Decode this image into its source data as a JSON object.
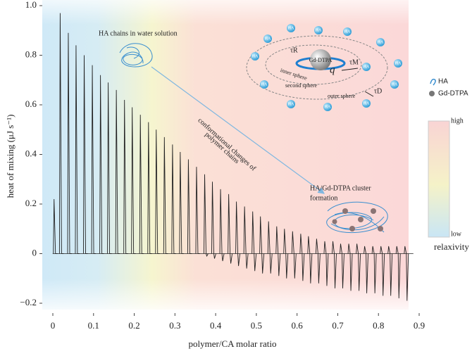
{
  "chart_data": {
    "type": "spikes",
    "x_label": "polymer/CA molar ratio",
    "y_label": "heat of mixing (μJ s⁻¹)",
    "xlim": [
      0,
      0.9
    ],
    "xticks": [
      0,
      0.1,
      0.2,
      0.3,
      0.4,
      0.5,
      0.6,
      0.7,
      0.8,
      0.9
    ],
    "ylim": [
      -0.2,
      1.0
    ],
    "yticks": [
      {
        "value": -0.2,
        "label": "−0.2"
      },
      0,
      0.2,
      0.4,
      0.6,
      0.8,
      {
        "value": 1.0,
        "label": "1.0"
      }
    ],
    "color": "#222222",
    "x": [
      0.003,
      0.018,
      0.038,
      0.057,
      0.077,
      0.097,
      0.117,
      0.136,
      0.156,
      0.176,
      0.195,
      0.215,
      0.235,
      0.254,
      0.274,
      0.294,
      0.313,
      0.333,
      0.353,
      0.373,
      0.392,
      0.412,
      0.432,
      0.451,
      0.471,
      0.491,
      0.51,
      0.53,
      0.55,
      0.569,
      0.589,
      0.609,
      0.628,
      0.648,
      0.668,
      0.688,
      0.707,
      0.727,
      0.747,
      0.766,
      0.786,
      0.806,
      0.825,
      0.845,
      0.865
    ],
    "peaks": [
      0.22,
      0.97,
      0.89,
      0.84,
      0.8,
      0.76,
      0.72,
      0.69,
      0.66,
      0.62,
      0.59,
      0.56,
      0.53,
      0.5,
      0.47,
      0.44,
      0.41,
      0.38,
      0.35,
      0.32,
      0.29,
      0.26,
      0.24,
      0.21,
      0.19,
      0.17,
      0.15,
      0.13,
      0.11,
      0.1,
      0.09,
      0.08,
      0.07,
      0.06,
      0.05,
      0.05,
      0.04,
      0.04,
      0.04,
      0.03,
      0.03,
      0.03,
      0.03,
      0.03,
      0.03
    ],
    "troughs": [
      0,
      0,
      0,
      0,
      0,
      0,
      0,
      0,
      0,
      0,
      0,
      0,
      0,
      0,
      0,
      0,
      0,
      0,
      0,
      -0.01,
      -0.02,
      -0.03,
      -0.04,
      -0.05,
      -0.06,
      -0.07,
      -0.08,
      -0.08,
      -0.09,
      -0.1,
      -0.1,
      -0.11,
      -0.12,
      -0.12,
      -0.13,
      -0.14,
      -0.14,
      -0.15,
      -0.15,
      -0.16,
      -0.16,
      -0.17,
      -0.17,
      -0.18,
      -0.19
    ],
    "annotations": {
      "chains": "HA chains in water solution",
      "change": [
        "conformational changes of",
        "polymer chains"
      ],
      "cluster": [
        "HA/Gd-DTPA cluster",
        "formation"
      ],
      "center": "Gd-DTPA",
      "tau_r": "τR",
      "tau_m": "τM",
      "tau_d": "τD",
      "q": "q",
      "inner": "inner sphere",
      "second": "second sphere",
      "outer": "outer sphere",
      "ball": "HA"
    },
    "legend": [
      "HA",
      "Gd-DTPA"
    ],
    "colorbar": {
      "high": "high",
      "low": "low",
      "label": "relaxivity"
    }
  }
}
